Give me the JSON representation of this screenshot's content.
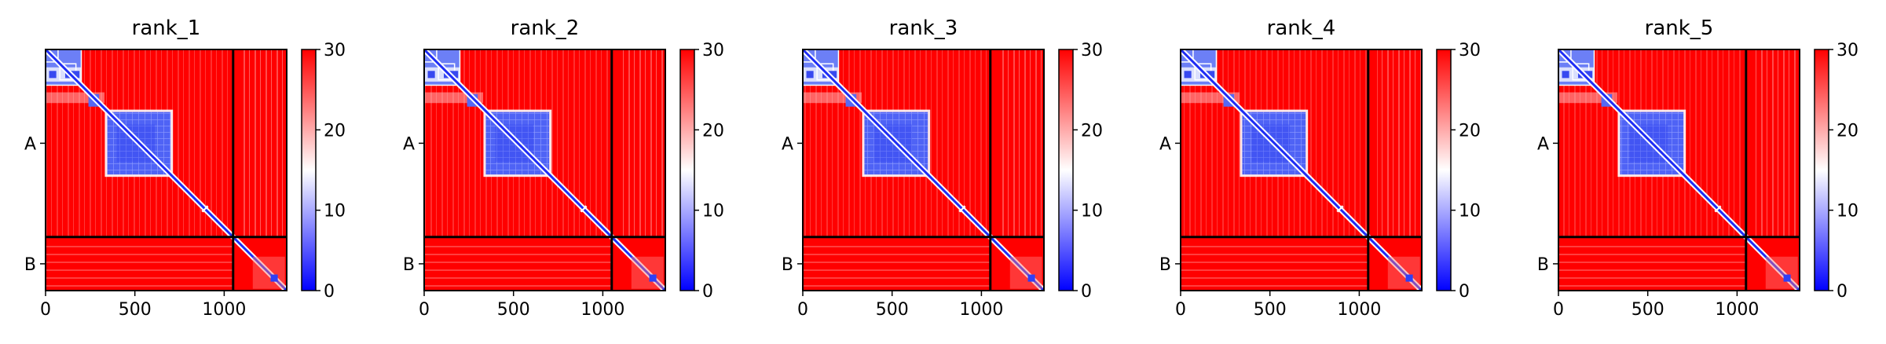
{
  "chart_data": [
    {
      "type": "heatmap",
      "title": "rank_1",
      "xticks": [
        0,
        500,
        1000
      ],
      "xlim": [
        0,
        1350
      ],
      "row_labels": [
        "A",
        "B"
      ],
      "chain_boundary": 1050,
      "colorbar": {
        "min": 0,
        "max": 30,
        "ticks": [
          0,
          10,
          20,
          30
        ],
        "colors": [
          "#0000ff",
          "#ffffff",
          "#ff0000"
        ]
      }
    },
    {
      "type": "heatmap",
      "title": "rank_2",
      "xticks": [
        0,
        500,
        1000
      ],
      "xlim": [
        0,
        1350
      ],
      "row_labels": [
        "A",
        "B"
      ],
      "chain_boundary": 1050,
      "colorbar": {
        "min": 0,
        "max": 30,
        "ticks": [
          0,
          10,
          20,
          30
        ],
        "colors": [
          "#0000ff",
          "#ffffff",
          "#ff0000"
        ]
      }
    },
    {
      "type": "heatmap",
      "title": "rank_3",
      "xticks": [
        0,
        500,
        1000
      ],
      "xlim": [
        0,
        1350
      ],
      "row_labels": [
        "A",
        "B"
      ],
      "chain_boundary": 1050,
      "colorbar": {
        "min": 0,
        "max": 30,
        "ticks": [
          0,
          10,
          20,
          30
        ],
        "colors": [
          "#0000ff",
          "#ffffff",
          "#ff0000"
        ]
      }
    },
    {
      "type": "heatmap",
      "title": "rank_4",
      "xticks": [
        0,
        500,
        1000
      ],
      "xlim": [
        0,
        1350
      ],
      "row_labels": [
        "A",
        "B"
      ],
      "chain_boundary": 1050,
      "colorbar": {
        "min": 0,
        "max": 30,
        "ticks": [
          0,
          10,
          20,
          30
        ],
        "colors": [
          "#0000ff",
          "#ffffff",
          "#ff0000"
        ]
      }
    },
    {
      "type": "heatmap",
      "title": "rank_5",
      "xticks": [
        0,
        500,
        1000
      ],
      "xlim": [
        0,
        1350
      ],
      "row_labels": [
        "A",
        "B"
      ],
      "chain_boundary": 1050,
      "colorbar": {
        "min": 0,
        "max": 30,
        "ticks": [
          0,
          10,
          20,
          30
        ],
        "colors": [
          "#0000ff",
          "#ffffff",
          "#ff0000"
        ]
      }
    }
  ]
}
